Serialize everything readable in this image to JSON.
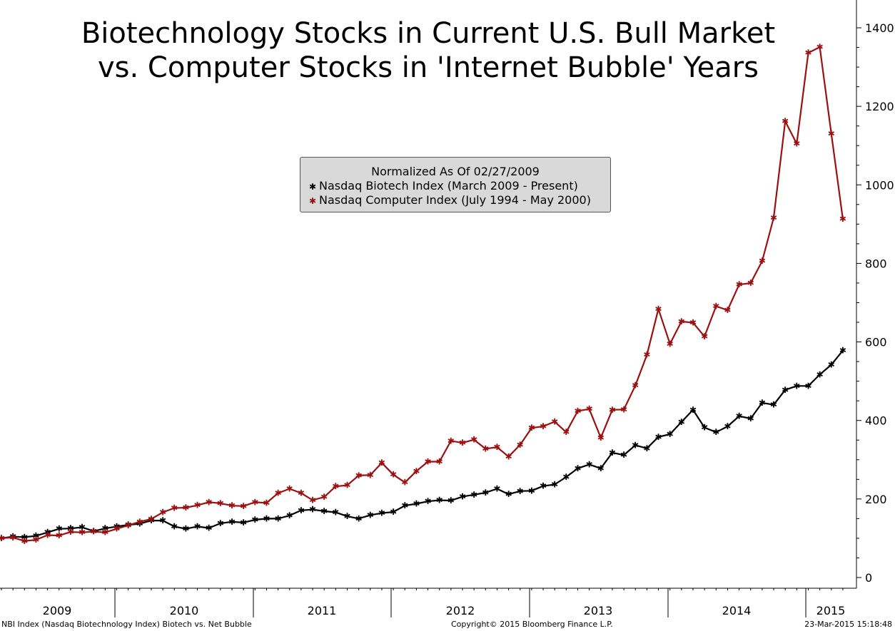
{
  "chart_data": {
    "type": "line",
    "title": "Biotechnology Stocks in Current U.S. Bull Market",
    "subtitle": "vs. Computer Stocks in 'Internet Bubble' Years",
    "legend": {
      "title": "Normalized As Of 02/27/2009",
      "placement": "top-center"
    },
    "x_ticks": [
      "2009",
      "2010",
      "2011",
      "2012",
      "2013",
      "2014",
      "2015"
    ],
    "y_ticks": [
      "0",
      "200",
      "400",
      "600",
      "800",
      "1000",
      "1200",
      "1400"
    ],
    "ylim": [
      -30,
      1470
    ],
    "y_axis_side": "right",
    "grid": false,
    "series": [
      {
        "name": "Nasdaq Biotech Index (March 2009 - Present)",
        "color": "#000000",
        "values": [
          100,
          104,
          103,
          106,
          115,
          124,
          125,
          128,
          118,
          125,
          130,
          134,
          137,
          145,
          145,
          130,
          124,
          130,
          126,
          138,
          142,
          140,
          147,
          150,
          150,
          158,
          171,
          173,
          169,
          166,
          156,
          150,
          159,
          164,
          167,
          183,
          188,
          194,
          197,
          196,
          206,
          211,
          216,
          226,
          212,
          220,
          221,
          233,
          237,
          256,
          278,
          288,
          278,
          318,
          312,
          337,
          329,
          358,
          365,
          396,
          427,
          382,
          370,
          385,
          411,
          405,
          445,
          440,
          478,
          488,
          488,
          517,
          542,
          578
        ]
      },
      {
        "name": "Nasdaq Computer Index (July 1994 - May 2000)",
        "color": "#9b1010",
        "values": [
          100,
          102,
          93,
          96,
          108,
          107,
          116,
          115,
          117,
          115,
          124,
          133,
          142,
          149,
          166,
          177,
          178,
          184,
          192,
          189,
          183,
          182,
          192,
          190,
          215,
          226,
          215,
          197,
          205,
          232,
          235,
          260,
          261,
          292,
          262,
          242,
          271,
          295,
          295,
          348,
          343,
          351,
          328,
          332,
          308,
          338,
          381,
          385,
          397,
          370,
          424,
          429,
          356,
          427,
          428,
          489,
          567,
          684,
          595,
          652,
          649,
          614,
          691,
          681,
          746,
          750,
          806,
          916,
          1162,
          1105,
          1336,
          1351,
          1130,
          913
        ]
      }
    ]
  },
  "footer": {
    "left": "NBI Index (Nasdaq Biotechnology Index) Biotech vs. Net Bubble",
    "center": "Copyright© 2015 Bloomberg Finance L.P.",
    "right": "23-Mar-2015 15:18:48"
  }
}
